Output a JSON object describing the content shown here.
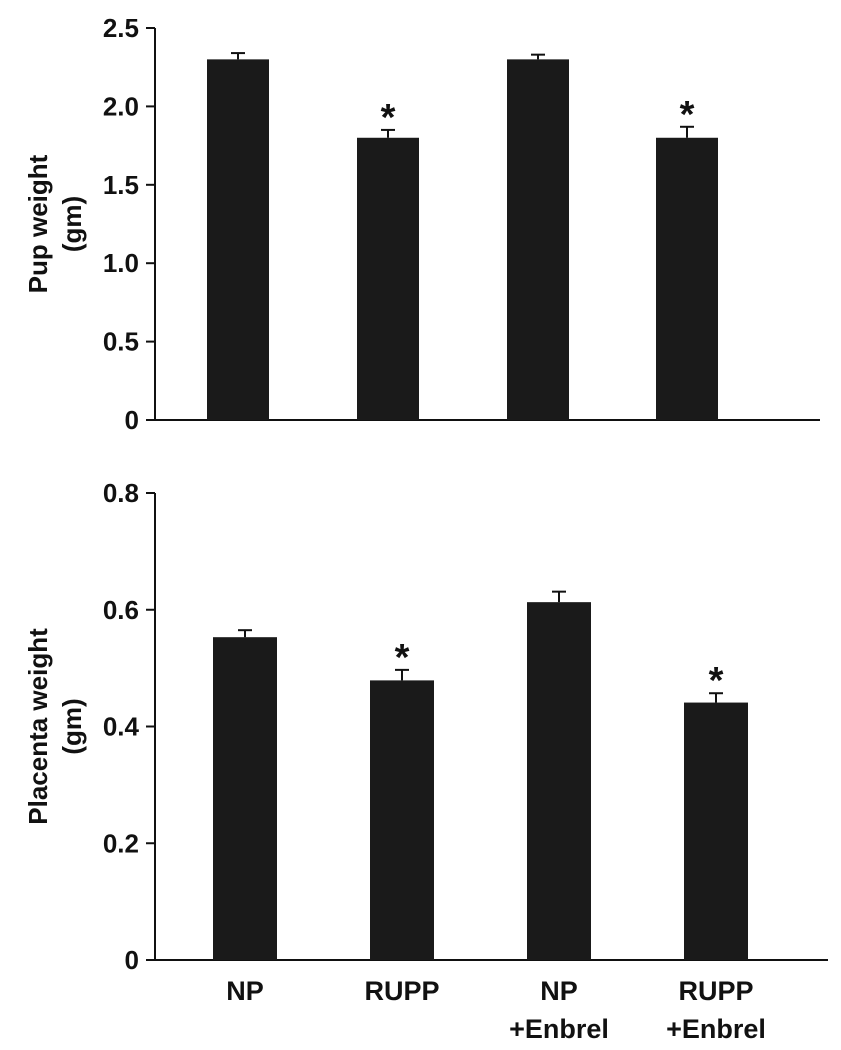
{
  "chart_data": [
    {
      "type": "bar",
      "ylabel_line1": "Pup weight",
      "ylabel_line2": "(gm)",
      "ylim": [
        0,
        2.5
      ],
      "yticks": [
        0,
        0.5,
        1.0,
        1.5,
        2.0,
        2.5
      ],
      "ytick_labels": [
        "0",
        "0.5",
        "1.0",
        "1.5",
        "2.0",
        "2.5"
      ],
      "values": [
        2.3,
        1.8,
        2.3,
        1.8
      ],
      "errors": [
        0.04,
        0.05,
        0.03,
        0.07
      ],
      "significance": [
        "",
        "*",
        "",
        "*"
      ],
      "grid": false
    },
    {
      "type": "bar",
      "ylabel_line1": "Placenta weight",
      "ylabel_line2": "(gm)",
      "ylim": [
        0,
        0.8
      ],
      "yticks": [
        0,
        0.2,
        0.4,
        0.6,
        0.8
      ],
      "ytick_labels": [
        "0",
        "0.2",
        "0.4",
        "0.6",
        "0.8"
      ],
      "values": [
        0.553,
        0.479,
        0.613,
        0.441
      ],
      "errors": [
        0.012,
        0.018,
        0.018,
        0.016
      ],
      "significance": [
        "",
        "*",
        "",
        "*"
      ],
      "grid": false
    }
  ],
  "categories": [
    [
      "NP",
      ""
    ],
    [
      "RUPP",
      ""
    ],
    [
      "NP",
      "+Enbrel"
    ],
    [
      "RUPP",
      "+Enbrel"
    ]
  ],
  "colors": {
    "bar": "#1a1a1a",
    "axis": "#111111"
  }
}
